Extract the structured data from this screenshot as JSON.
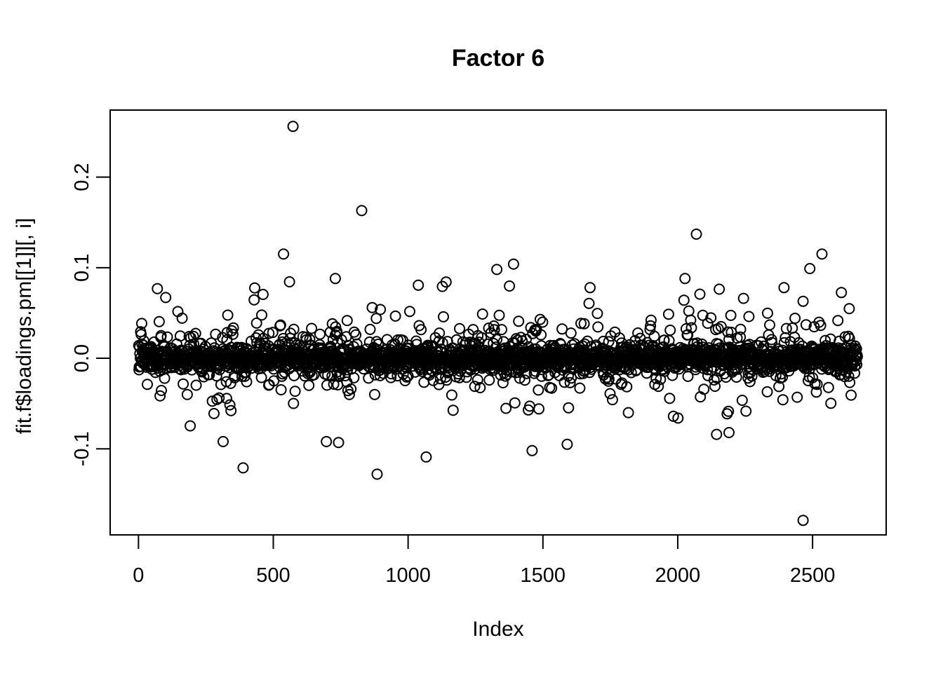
{
  "window": {
    "background_color": "#ffffff",
    "foreground_color": "#000000"
  },
  "chart_data": {
    "type": "scatter",
    "title": "Factor 6",
    "xlabel": "Index",
    "ylabel": "fit.f$loadings.pm[[1]][, i]",
    "legend": "none",
    "grid": "off",
    "marker": "open-circle",
    "marker_color": "#000000",
    "x_ticks": [
      0,
      500,
      1000,
      1500,
      2000,
      2500
    ],
    "x_tick_labels": [
      "0",
      "500",
      "1000",
      "1500",
      "2000",
      "2500"
    ],
    "y_ticks": [
      -0.1,
      0.0,
      0.1,
      0.2
    ],
    "y_tick_labels": [
      "-0.1",
      "0.0",
      "0.1",
      "0.2"
    ],
    "xlim": [
      -105,
      2773
    ],
    "ylim": [
      -0.195,
      0.274
    ],
    "n_points": 2666,
    "x_is_index": true,
    "summary": {
      "description": "Index plot of ~2666 factor loadings; dense band centered at 0 with spread mostly within ±0.03 and scattered values to ±0.09",
      "center": 0.0,
      "typical_spread": 0.015,
      "max_value": 0.256,
      "min_value": -0.179
    },
    "outliers": [
      {
        "index": 573,
        "value": 0.256
      },
      {
        "index": 828,
        "value": 0.163
      },
      {
        "index": 2069,
        "value": 0.137
      },
      {
        "index": 538,
        "value": 0.115
      },
      {
        "index": 2535,
        "value": 0.115
      },
      {
        "index": 1391,
        "value": 0.104
      },
      {
        "index": 1329,
        "value": 0.098
      },
      {
        "index": 2490,
        "value": 0.099
      },
      {
        "index": 2027,
        "value": 0.088
      },
      {
        "index": 730,
        "value": 0.088
      },
      {
        "index": 1675,
        "value": 0.078
      },
      {
        "index": 2394,
        "value": 0.078
      },
      {
        "index": 2465,
        "value": -0.179
      },
      {
        "index": 885,
        "value": -0.128
      },
      {
        "index": 388,
        "value": -0.121
      },
      {
        "index": 1067,
        "value": -0.109
      },
      {
        "index": 1460,
        "value": -0.102
      },
      {
        "index": 1590,
        "value": -0.095
      },
      {
        "index": 742,
        "value": -0.093
      },
      {
        "index": 697,
        "value": -0.092
      },
      {
        "index": 314,
        "value": -0.092
      },
      {
        "index": 2144,
        "value": -0.084
      },
      {
        "index": 2190,
        "value": -0.082
      }
    ],
    "background_generator": {
      "seed": 7,
      "n": 2666,
      "layers": [
        {
          "weight": 0.6,
          "sigma": 0.006
        },
        {
          "weight": 0.25,
          "sigma": 0.0135
        },
        {
          "weight": 0.11,
          "sigma": 0.026
        },
        {
          "weight": 0.04,
          "sigma": 0.045
        }
      ],
      "fold_limit": 0.085
    }
  }
}
